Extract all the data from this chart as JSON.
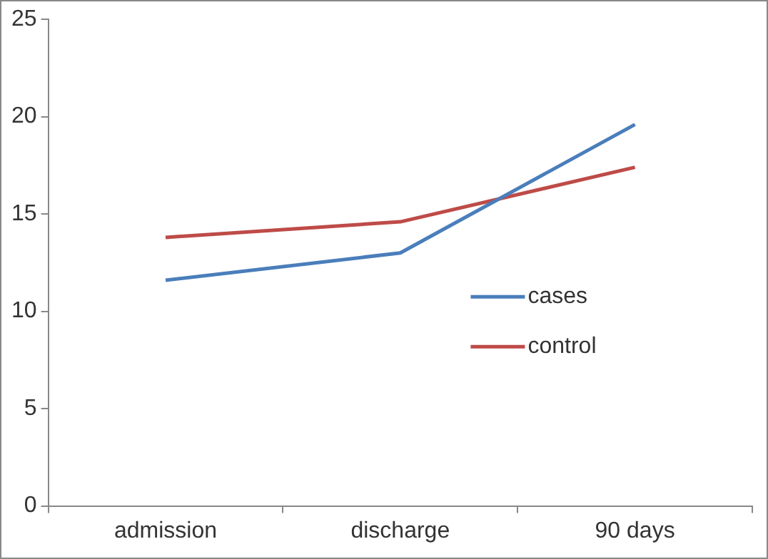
{
  "chart_data": {
    "type": "line",
    "categories": [
      "admission",
      "discharge",
      "90 days"
    ],
    "series": [
      {
        "name": "cases",
        "color": "#4a7ebb",
        "values": [
          11.6,
          13.0,
          19.6
        ]
      },
      {
        "name": "control",
        "color": "#be4b48",
        "values": [
          13.8,
          14.6,
          17.4
        ]
      }
    ],
    "ylim": [
      0,
      25
    ],
    "yticks": [
      0,
      5,
      10,
      15,
      20,
      25
    ],
    "grid": false,
    "legend": "right",
    "marker": "none",
    "line_style": "solid"
  }
}
